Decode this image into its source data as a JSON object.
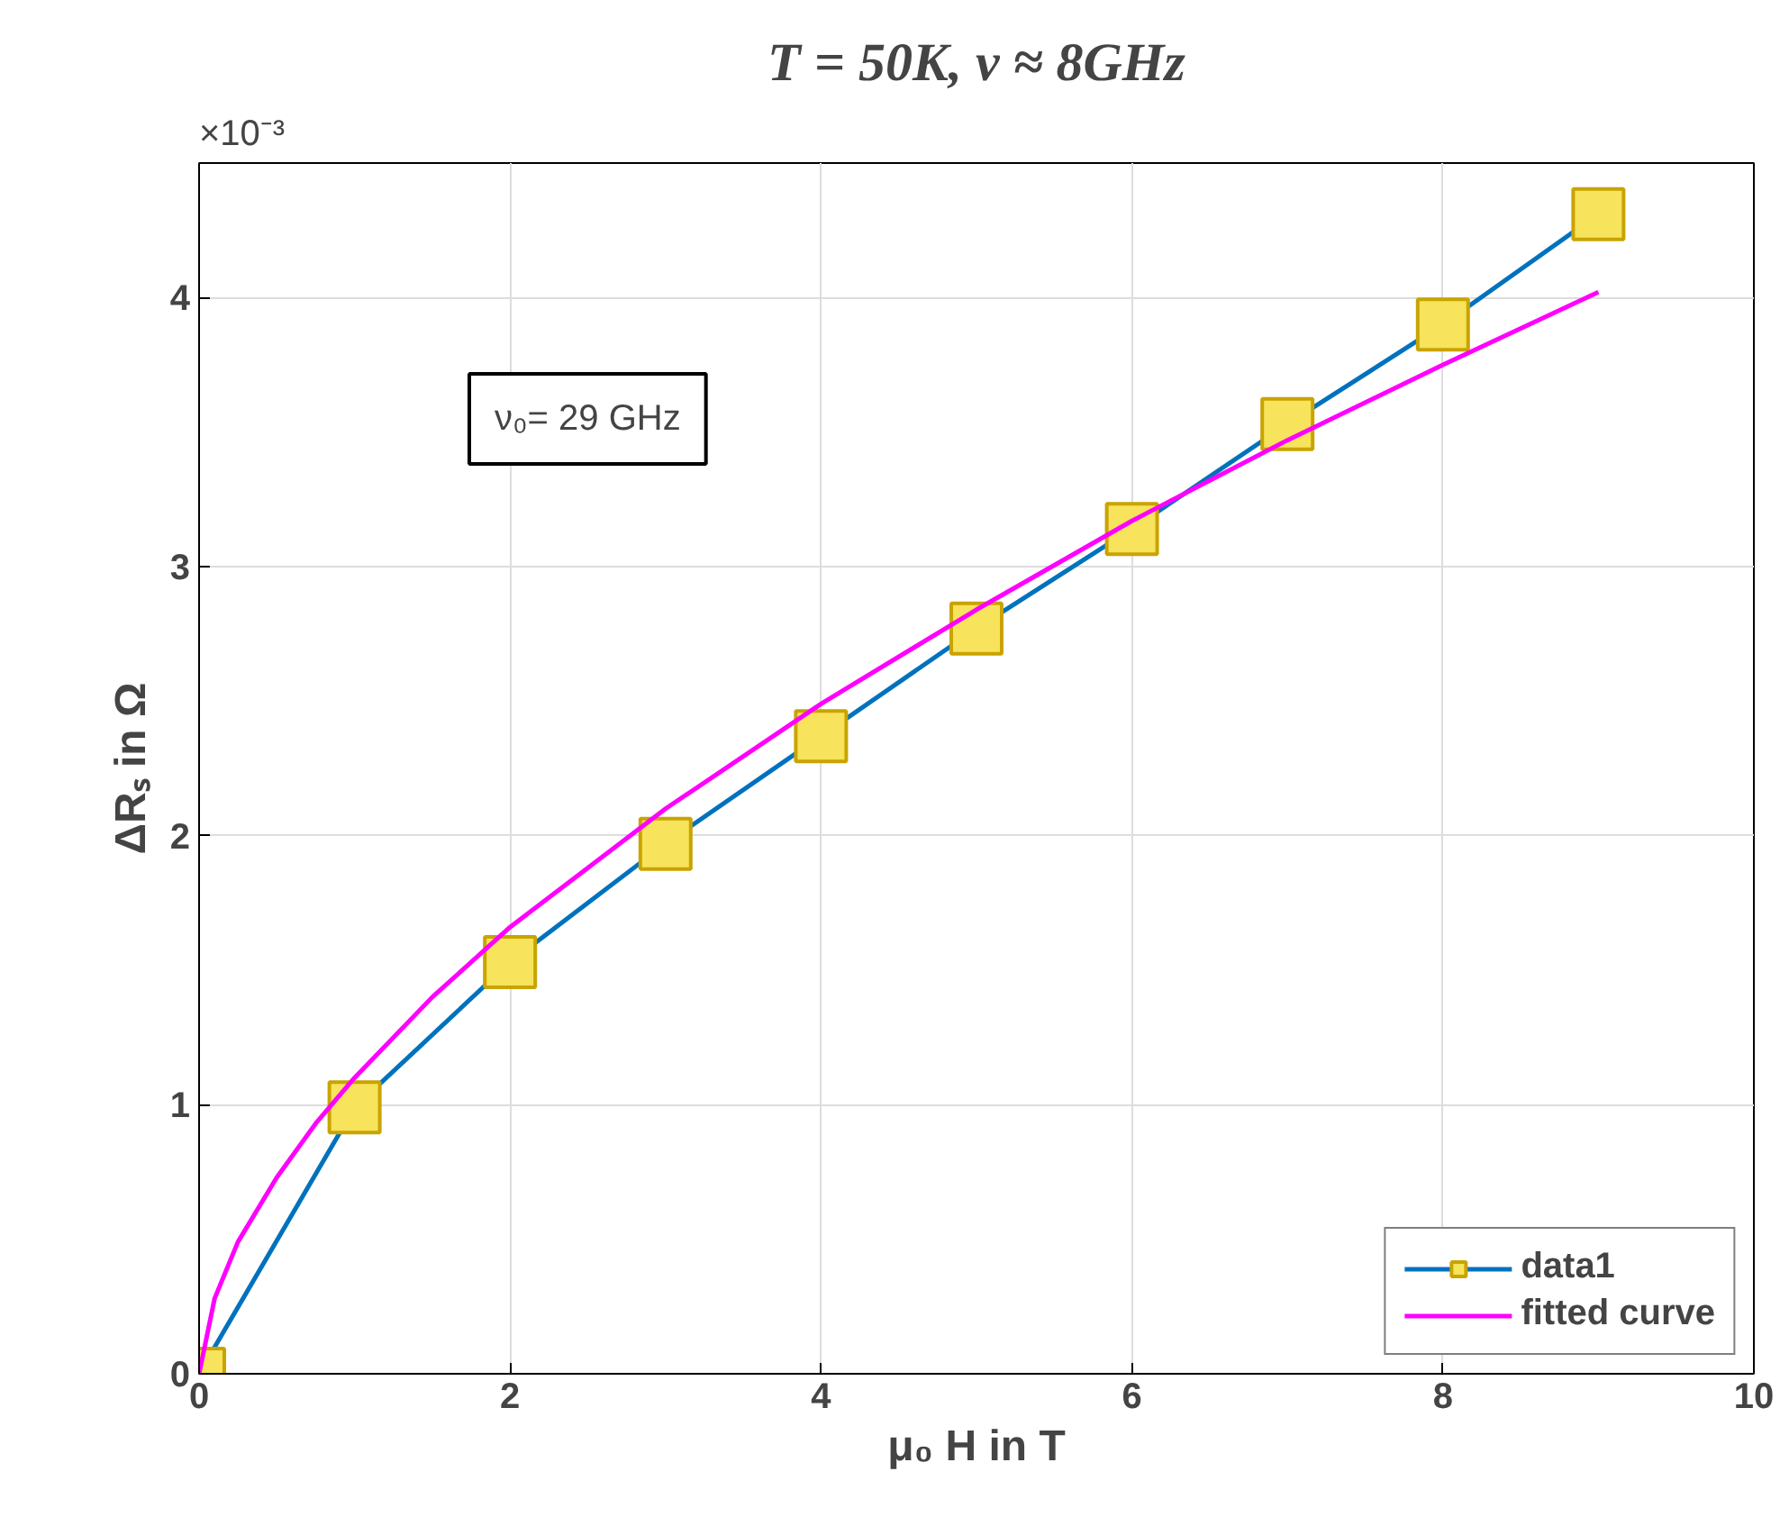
{
  "chart_data": {
    "type": "line",
    "title": "T = 50K, ν ≈ 8GHz",
    "xlabel": "μ₀ H in T",
    "ylabel": "ΔRₛ in Ω",
    "annotations": [
      "×10⁻³",
      "ν₀= 29 GHz"
    ],
    "series": [
      {
        "name": "data1",
        "color": "#0072bd",
        "marker": "square",
        "x": [
          0,
          1,
          2,
          3,
          4,
          5,
          6,
          7,
          8,
          9
        ],
        "values": [
          0.0,
          0.99,
          1.53,
          1.97,
          2.37,
          2.77,
          3.14,
          3.53,
          3.9,
          4.31
        ]
      },
      {
        "name": "fitted curve",
        "color": "#ff00ff",
        "marker": "none",
        "x": [
          0,
          0.1,
          0.25,
          0.5,
          0.75,
          1,
          1.5,
          2,
          3,
          4,
          5,
          6,
          7,
          8,
          9
        ],
        "values": [
          0.0,
          0.28,
          0.49,
          0.73,
          0.93,
          1.1,
          1.4,
          1.66,
          2.1,
          2.49,
          2.84,
          3.17,
          3.47,
          3.75,
          4.02
        ]
      }
    ],
    "xlim": [
      0,
      10
    ],
    "xticks": [
      0,
      2,
      4,
      6,
      8,
      10
    ],
    "ylim": [
      0,
      4.5
    ],
    "yticks": [
      0,
      1,
      2,
      3,
      4
    ],
    "grid": true,
    "legend": "bottom right",
    "line_style": "solid"
  }
}
